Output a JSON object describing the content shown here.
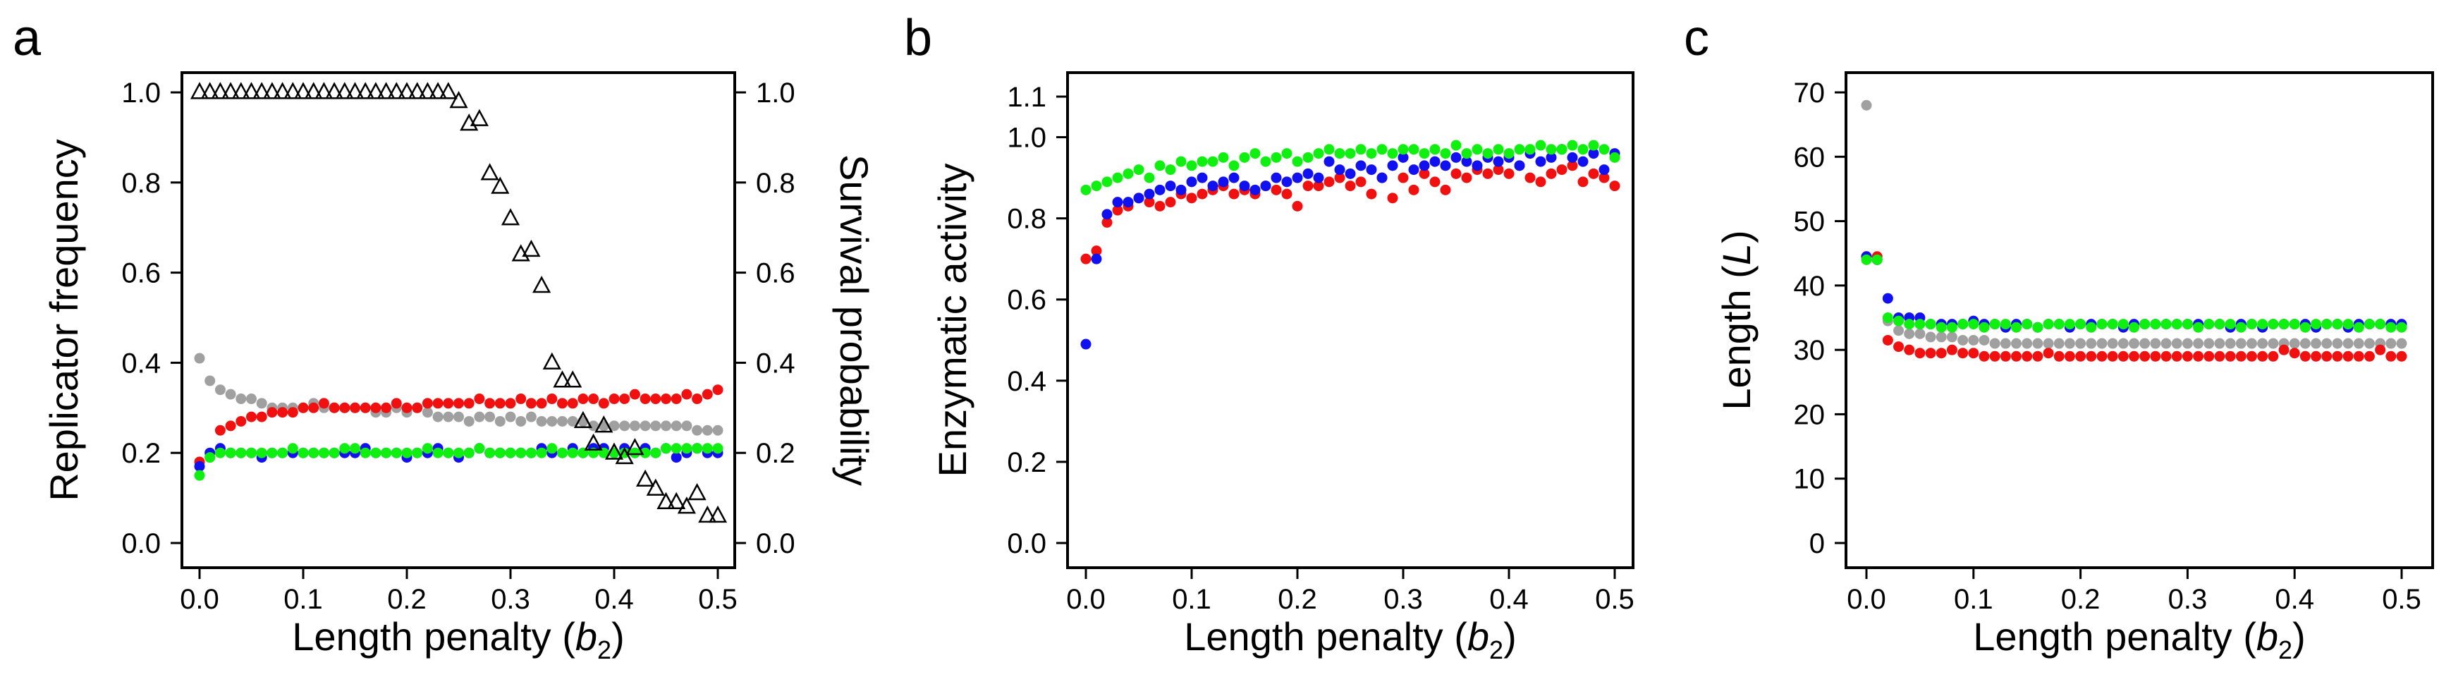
{
  "figure": {
    "panel_letters": [
      "a",
      "b",
      "c"
    ]
  },
  "series_colors": {
    "red": "#f01010",
    "blue": "#1010f0",
    "green": "#10f010",
    "grey": "#a0a0a0",
    "survival": "#000000"
  },
  "chart_data": [
    {
      "panel": "a",
      "type": "scatter",
      "xlabel_text": "Length penalty (",
      "xlabel_var": "b",
      "xlabel_sub": "2",
      "xlabel_close": ")",
      "ylabel": "Replicator frequency",
      "y2label": "Survival probability",
      "xlim": [
        0,
        0.5
      ],
      "ylim": [
        0,
        1.0
      ],
      "y2lim": [
        0,
        1.0
      ],
      "xticks": [
        0.0,
        0.1,
        0.2,
        0.3,
        0.4,
        0.5
      ],
      "xtick_labels": [
        "0.0",
        "0.1",
        "0.2",
        "0.3",
        "0.4",
        "0.5"
      ],
      "yticks": [
        0.0,
        0.2,
        0.4,
        0.6,
        0.8,
        1.0
      ],
      "ytick_labels": [
        "0.0",
        "0.2",
        "0.4",
        "0.6",
        "0.8",
        "1.0"
      ],
      "y2ticks": [
        0.0,
        0.2,
        0.4,
        0.6,
        0.8,
        1.0
      ],
      "y2tick_labels": [
        "0.0",
        "0.2",
        "0.4",
        "0.6",
        "0.8",
        "1.0"
      ],
      "x": [
        0.0,
        0.01,
        0.02,
        0.03,
        0.04,
        0.05,
        0.06,
        0.07,
        0.08,
        0.09,
        0.1,
        0.11,
        0.12,
        0.13,
        0.14,
        0.15,
        0.16,
        0.17,
        0.18,
        0.19,
        0.2,
        0.21,
        0.22,
        0.23,
        0.24,
        0.25,
        0.26,
        0.27,
        0.28,
        0.29,
        0.3,
        0.31,
        0.32,
        0.33,
        0.34,
        0.35,
        0.36,
        0.37,
        0.38,
        0.39,
        0.4,
        0.41,
        0.42,
        0.43,
        0.44,
        0.45,
        0.46,
        0.47,
        0.48,
        0.49,
        0.5
      ],
      "series": [
        {
          "name": "grey",
          "color_key": "grey",
          "marker": "dot",
          "values": [
            0.41,
            0.36,
            0.34,
            0.33,
            0.32,
            0.32,
            0.31,
            0.3,
            0.3,
            0.3,
            0.3,
            0.31,
            0.3,
            0.3,
            0.3,
            0.3,
            0.3,
            0.29,
            0.29,
            0.3,
            0.29,
            0.3,
            0.29,
            0.28,
            0.28,
            0.28,
            0.27,
            0.28,
            0.28,
            0.27,
            0.28,
            0.27,
            0.28,
            0.27,
            0.27,
            0.27,
            0.27,
            0.27,
            0.26,
            0.26,
            0.26,
            0.26,
            0.26,
            0.26,
            0.26,
            0.26,
            0.26,
            0.26,
            0.25,
            0.25,
            0.25
          ]
        },
        {
          "name": "red",
          "color_key": "red",
          "marker": "dot",
          "values": [
            0.18,
            0.19,
            0.25,
            0.26,
            0.27,
            0.28,
            0.28,
            0.29,
            0.29,
            0.29,
            0.3,
            0.3,
            0.31,
            0.3,
            0.3,
            0.3,
            0.3,
            0.3,
            0.3,
            0.31,
            0.3,
            0.3,
            0.31,
            0.31,
            0.31,
            0.31,
            0.31,
            0.32,
            0.31,
            0.31,
            0.31,
            0.32,
            0.31,
            0.31,
            0.32,
            0.31,
            0.31,
            0.32,
            0.32,
            0.31,
            0.32,
            0.32,
            0.33,
            0.32,
            0.32,
            0.32,
            0.32,
            0.33,
            0.32,
            0.33,
            0.34
          ]
        },
        {
          "name": "blue",
          "color_key": "blue",
          "marker": "dot",
          "values": [
            0.17,
            0.2,
            0.21,
            0.2,
            0.2,
            0.2,
            0.19,
            0.2,
            0.2,
            0.2,
            0.2,
            0.2,
            0.2,
            0.2,
            0.2,
            0.2,
            0.21,
            0.2,
            0.2,
            0.2,
            0.19,
            0.2,
            0.2,
            0.21,
            0.2,
            0.19,
            0.2,
            0.21,
            0.2,
            0.2,
            0.2,
            0.2,
            0.2,
            0.21,
            0.2,
            0.2,
            0.21,
            0.2,
            0.21,
            0.21,
            0.2,
            0.21,
            0.2,
            0.21,
            0.2,
            0.21,
            0.19,
            0.2,
            0.21,
            0.2,
            0.2
          ]
        },
        {
          "name": "green",
          "color_key": "green",
          "marker": "dot",
          "values": [
            0.15,
            0.19,
            0.2,
            0.2,
            0.2,
            0.2,
            0.2,
            0.2,
            0.2,
            0.21,
            0.2,
            0.2,
            0.2,
            0.2,
            0.21,
            0.21,
            0.2,
            0.2,
            0.2,
            0.2,
            0.2,
            0.2,
            0.21,
            0.2,
            0.2,
            0.2,
            0.2,
            0.21,
            0.2,
            0.2,
            0.2,
            0.2,
            0.2,
            0.2,
            0.21,
            0.2,
            0.2,
            0.2,
            0.2,
            0.2,
            0.2,
            0.2,
            0.2,
            0.2,
            0.2,
            0.21,
            0.21,
            0.21,
            0.21,
            0.21,
            0.21
          ]
        },
        {
          "name": "survival probability",
          "color_key": "survival",
          "marker": "triangle",
          "axis": "right",
          "values": [
            1.0,
            1.0,
            1.0,
            1.0,
            1.0,
            1.0,
            1.0,
            1.0,
            1.0,
            1.0,
            1.0,
            1.0,
            1.0,
            1.0,
            1.0,
            1.0,
            1.0,
            1.0,
            1.0,
            1.0,
            1.0,
            1.0,
            1.0,
            1.0,
            1.0,
            0.98,
            0.93,
            0.94,
            0.82,
            0.79,
            0.72,
            0.64,
            0.65,
            0.57,
            0.4,
            0.36,
            0.36,
            0.27,
            0.22,
            0.26,
            0.2,
            0.19,
            0.21,
            0.14,
            0.12,
            0.09,
            0.09,
            0.08,
            0.11,
            0.06,
            0.06
          ]
        }
      ]
    },
    {
      "panel": "b",
      "type": "scatter",
      "xlabel_text": "Length penalty (",
      "xlabel_var": "b",
      "xlabel_sub": "2",
      "xlabel_close": ")",
      "ylabel": "Enzymatic activity",
      "xlim": [
        0,
        0.5
      ],
      "ylim": [
        0,
        1.1
      ],
      "xticks": [
        0.0,
        0.1,
        0.2,
        0.3,
        0.4,
        0.5
      ],
      "xtick_labels": [
        "0.0",
        "0.1",
        "0.2",
        "0.3",
        "0.4",
        "0.5"
      ],
      "yticks": [
        0.0,
        0.2,
        0.4,
        0.6,
        0.8,
        1.0,
        1.1
      ],
      "ytick_labels": [
        "0.0",
        "0.2",
        "0.4",
        "0.6",
        "0.8",
        "1.0",
        "1.1"
      ],
      "x": [
        0.0,
        0.01,
        0.02,
        0.03,
        0.04,
        0.05,
        0.06,
        0.07,
        0.08,
        0.09,
        0.1,
        0.11,
        0.12,
        0.13,
        0.14,
        0.15,
        0.16,
        0.17,
        0.18,
        0.19,
        0.2,
        0.21,
        0.22,
        0.23,
        0.24,
        0.25,
        0.26,
        0.27,
        0.28,
        0.29,
        0.3,
        0.31,
        0.32,
        0.33,
        0.34,
        0.35,
        0.36,
        0.37,
        0.38,
        0.39,
        0.4,
        0.41,
        0.42,
        0.43,
        0.44,
        0.45,
        0.46,
        0.47,
        0.48,
        0.49,
        0.5
      ],
      "series": [
        {
          "name": "red",
          "color_key": "red",
          "marker": "dot",
          "values": [
            0.7,
            0.72,
            0.79,
            0.82,
            0.83,
            0.85,
            0.84,
            0.83,
            0.84,
            0.86,
            0.85,
            0.86,
            0.87,
            0.88,
            0.86,
            0.87,
            0.86,
            0.88,
            0.87,
            0.86,
            0.83,
            0.88,
            0.88,
            0.89,
            0.9,
            0.88,
            0.89,
            0.86,
            0.9,
            0.85,
            0.9,
            0.87,
            0.91,
            0.89,
            0.87,
            0.91,
            0.9,
            0.92,
            0.91,
            0.92,
            0.91,
            0.93,
            0.9,
            0.89,
            0.91,
            0.92,
            0.93,
            0.89,
            0.91,
            0.9,
            0.88
          ]
        },
        {
          "name": "blue",
          "color_key": "blue",
          "marker": "dot",
          "values": [
            0.49,
            0.7,
            0.81,
            0.84,
            0.84,
            0.85,
            0.86,
            0.87,
            0.88,
            0.87,
            0.89,
            0.9,
            0.88,
            0.89,
            0.9,
            0.88,
            0.87,
            0.88,
            0.9,
            0.89,
            0.9,
            0.91,
            0.9,
            0.94,
            0.92,
            0.91,
            0.93,
            0.92,
            0.9,
            0.93,
            0.95,
            0.92,
            0.93,
            0.94,
            0.93,
            0.95,
            0.94,
            0.93,
            0.95,
            0.94,
            0.95,
            0.93,
            0.96,
            0.94,
            0.95,
            0.97,
            0.95,
            0.94,
            0.96,
            0.92,
            0.96
          ]
        },
        {
          "name": "green",
          "color_key": "green",
          "marker": "dot",
          "values": [
            0.87,
            0.88,
            0.89,
            0.9,
            0.91,
            0.92,
            0.9,
            0.93,
            0.92,
            0.94,
            0.93,
            0.94,
            0.94,
            0.95,
            0.93,
            0.95,
            0.96,
            0.94,
            0.95,
            0.96,
            0.94,
            0.95,
            0.96,
            0.97,
            0.96,
            0.96,
            0.97,
            0.96,
            0.97,
            0.96,
            0.97,
            0.97,
            0.96,
            0.97,
            0.96,
            0.98,
            0.96,
            0.97,
            0.96,
            0.97,
            0.96,
            0.97,
            0.97,
            0.98,
            0.97,
            0.97,
            0.98,
            0.97,
            0.98,
            0.97,
            0.95
          ]
        }
      ]
    },
    {
      "panel": "c",
      "type": "scatter",
      "xlabel_text": "Length penalty (",
      "xlabel_var": "b",
      "xlabel_sub": "2",
      "xlabel_close": ")",
      "ylabel_text": "Length (",
      "ylabel_var": "L",
      "ylabel_close": ")",
      "xlim": [
        0,
        0.5
      ],
      "ylim": [
        0,
        70
      ],
      "xticks": [
        0.0,
        0.1,
        0.2,
        0.3,
        0.4,
        0.5
      ],
      "xtick_labels": [
        "0.0",
        "0.1",
        "0.2",
        "0.3",
        "0.4",
        "0.5"
      ],
      "yticks": [
        0,
        10,
        20,
        30,
        40,
        50,
        60,
        70
      ],
      "ytick_labels": [
        "0",
        "10",
        "20",
        "30",
        "40",
        "50",
        "60",
        "70"
      ],
      "x": [
        0.0,
        0.01,
        0.02,
        0.03,
        0.04,
        0.05,
        0.06,
        0.07,
        0.08,
        0.09,
        0.1,
        0.11,
        0.12,
        0.13,
        0.14,
        0.15,
        0.16,
        0.17,
        0.18,
        0.19,
        0.2,
        0.21,
        0.22,
        0.23,
        0.24,
        0.25,
        0.26,
        0.27,
        0.28,
        0.29,
        0.3,
        0.31,
        0.32,
        0.33,
        0.34,
        0.35,
        0.36,
        0.37,
        0.38,
        0.39,
        0.4,
        0.41,
        0.42,
        0.43,
        0.44,
        0.45,
        0.46,
        0.47,
        0.48,
        0.49,
        0.5
      ],
      "series": [
        {
          "name": "grey",
          "color_key": "grey",
          "marker": "dot",
          "values": [
            68,
            44,
            34.5,
            33,
            32.5,
            32.5,
            32,
            32,
            32,
            31.5,
            31.5,
            31.5,
            31,
            31,
            31,
            31,
            31,
            31,
            31,
            31,
            31,
            31,
            31,
            31,
            31,
            31,
            31,
            31,
            31,
            31,
            31,
            31,
            31,
            31,
            31,
            31,
            31,
            31,
            31,
            31,
            31,
            31,
            31,
            31,
            31,
            31,
            31,
            31,
            31,
            31,
            31
          ]
        },
        {
          "name": "red",
          "color_key": "red",
          "marker": "dot",
          "values": [
            44.5,
            44.5,
            31.5,
            30.5,
            30,
            29.5,
            29.5,
            29.5,
            30,
            29.5,
            29.5,
            29,
            29,
            29,
            29,
            29,
            29,
            29.5,
            29,
            29,
            29,
            29,
            29,
            29,
            29,
            29,
            29,
            29,
            29,
            29,
            29,
            29,
            29,
            29,
            29,
            29,
            29,
            29,
            29,
            30,
            29.5,
            29,
            29,
            29,
            29,
            29,
            29,
            29,
            30,
            29,
            29
          ]
        },
        {
          "name": "blue",
          "color_key": "blue",
          "marker": "dot",
          "values": [
            44.5,
            44,
            38,
            35,
            35,
            35,
            34,
            34,
            34,
            34,
            34.5,
            34,
            34,
            33.5,
            34,
            34,
            33.5,
            34,
            34,
            33.5,
            34,
            34,
            34,
            34,
            33.5,
            34,
            34,
            34,
            34,
            34,
            34,
            34,
            34,
            34,
            33.5,
            34,
            34,
            33.5,
            34,
            34,
            34,
            34,
            33.5,
            34,
            34,
            33.5,
            34,
            34,
            34,
            34,
            34
          ]
        },
        {
          "name": "green",
          "color_key": "green",
          "marker": "dot",
          "values": [
            44,
            44,
            35,
            34.5,
            34,
            34,
            34,
            33.5,
            33.5,
            34,
            34,
            33.5,
            34,
            34,
            33.5,
            34,
            33.5,
            34,
            34,
            34,
            34,
            33.5,
            34,
            34,
            34,
            33.5,
            34,
            34,
            34,
            34,
            34,
            33.5,
            34,
            34,
            34,
            33.5,
            34,
            34,
            34,
            34,
            34,
            33.5,
            34,
            34,
            34,
            34,
            33.5,
            34,
            34,
            33.5,
            33.5
          ]
        }
      ]
    }
  ]
}
